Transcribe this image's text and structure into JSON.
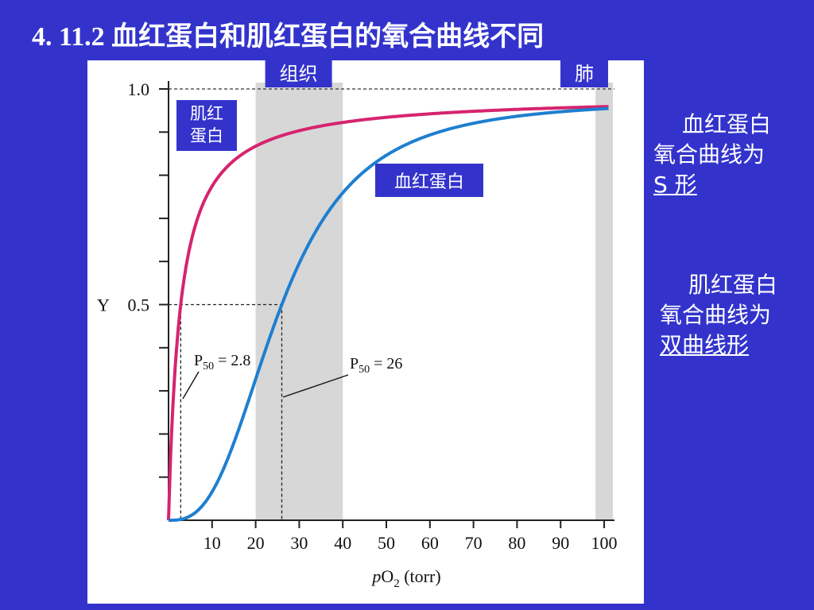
{
  "slide": {
    "title": "4. 11.2 血红蛋白和肌红蛋白的氧合曲线不同"
  },
  "notes": {
    "hemoglobin": {
      "line1": "血红蛋白",
      "line2": "氧合曲线为",
      "shape": "S 形"
    },
    "myoglobin": {
      "line1": "肌红蛋白",
      "line2": "氧合曲线为",
      "shape": "双曲线形"
    }
  },
  "chart_data": {
    "type": "line",
    "xlabel": "pO₂ (torr)",
    "xlabel_parts": {
      "italic": "p",
      "base": "O",
      "sub": "2",
      "rest": " (torr)"
    },
    "ylabel": "Y",
    "xlim": [
      0,
      102
    ],
    "ylim": [
      0,
      1.0
    ],
    "x_ticks": [
      10,
      20,
      30,
      40,
      50,
      60,
      70,
      80,
      90,
      100
    ],
    "y_tick_labels": [
      {
        "value": 1.0,
        "label": "1.0"
      },
      {
        "value": 0.5,
        "label": "0.5"
      }
    ],
    "y_minor_ticks": [
      0.1,
      0.2,
      0.3,
      0.4,
      0.6,
      0.7,
      0.8,
      0.9
    ],
    "regions": [
      {
        "label": "组织",
        "x_start": 20,
        "x_end": 40
      },
      {
        "label": "肺",
        "x_start": 98,
        "x_end": 102
      }
    ],
    "series": [
      {
        "name": "肌红蛋白",
        "label_lines": [
          "肌红",
          "蛋白"
        ],
        "color": "#d6246e",
        "model": "hyperbolic",
        "p50": 2.8,
        "x": [
          0,
          1,
          2,
          2.8,
          5,
          10,
          20,
          30,
          40,
          60,
          80,
          100
        ],
        "y": [
          0,
          0.26,
          0.42,
          0.5,
          0.64,
          0.78,
          0.88,
          0.915,
          0.935,
          0.955,
          0.965,
          0.973
        ]
      },
      {
        "name": "血红蛋白",
        "label_lines": [
          "血红蛋白"
        ],
        "color": "#1e7fd0",
        "model": "sigmoidal",
        "p50": 26,
        "x": [
          0,
          10,
          15,
          20,
          26,
          30,
          40,
          50,
          60,
          80,
          100
        ],
        "y": [
          0,
          0.08,
          0.18,
          0.3,
          0.5,
          0.6,
          0.76,
          0.84,
          0.89,
          0.93,
          0.948
        ]
      }
    ],
    "annotations": [
      {
        "text": "P50 = 2.8",
        "sub_base": "P",
        "sub": "50",
        "rest": " = 2.8",
        "x": 2.8,
        "y": 0.5
      },
      {
        "text": "P50 = 26",
        "sub_base": "P",
        "sub": "50",
        "rest": " = 26",
        "x": 26,
        "y": 0.5
      }
    ],
    "colors": {
      "region_fill": "#d7d7d7",
      "label_box": "#3333cc",
      "axis": "#222222"
    }
  }
}
